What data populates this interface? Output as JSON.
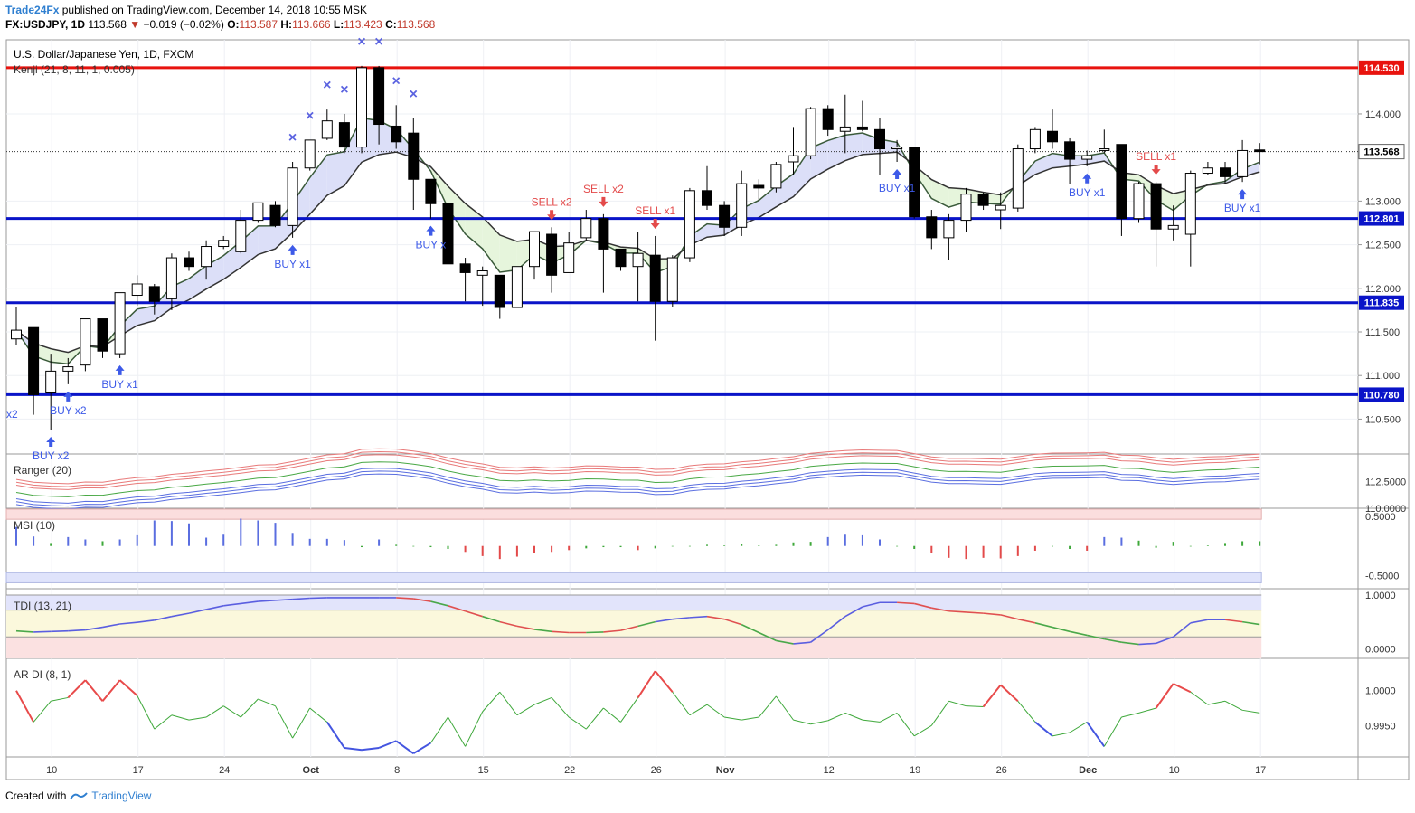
{
  "header": {
    "author": "Trade24Fx",
    "published_text": "published on TradingView.com, December 14, 2018 10:55 MSK",
    "symbol": "FX:USDJPY, 1D",
    "last": "113.568",
    "change": "−0.019 (−0.02%)",
    "open_label": "O:",
    "open": "113.587",
    "high_label": "H:",
    "high": "113.666",
    "low_label": "L:",
    "low": "113.423",
    "close_label": "C:",
    "close": "113.568"
  },
  "legend": {
    "title": "U.S. Dollar/Japanese Yen, 1D, FXCM",
    "kenji": "Kenji (21, 8, 11, 1, 0.005)"
  },
  "footer": {
    "created_with": "Created with",
    "brand": "TradingView"
  },
  "colors": {
    "bull": "#ffffff",
    "bear": "#000000",
    "wick": "#000000",
    "resistance": "#e8130e",
    "support": "#0a14c8",
    "buy": "#3d5ae8",
    "sell": "#e34a4a",
    "cross": "#5b63e0",
    "cloud_up": "#dcdff8",
    "cloud_down": "#e6f5dc",
    "ranger_red": "#e87a7a",
    "ranger_blue": "#5a6ee0",
    "ranger_green": "#49a845",
    "tdi_line": "#5a5ee0",
    "tdi_up": "#e05050",
    "tdi_green": "#4aa84a",
    "ardi_green": "#3ea83a",
    "ardi_red": "#e84a4a",
    "ardi_blue": "#4455e0"
  },
  "chart_data": [
    {
      "type": "candlestick",
      "name": "main",
      "title": "U.S. Dollar/Japanese Yen, 1D, FXCM",
      "ylim": [
        110.1,
        114.85
      ],
      "y_ticks": [
        "110.500",
        "111.000",
        "111.500",
        "112.000",
        "112.500",
        "113.000",
        "114.000"
      ],
      "x_ticks": [
        "10",
        "17",
        "24",
        "Oct",
        "8",
        "15",
        "22",
        "26",
        "Nov",
        "12",
        "19",
        "26",
        "Dec",
        "10",
        "17"
      ],
      "levels": [
        {
          "value": 114.53,
          "label": "114.530",
          "kind": "resistance"
        },
        {
          "value": 112.801,
          "label": "112.801",
          "kind": "support"
        },
        {
          "value": 111.835,
          "label": "111.835",
          "kind": "support"
        },
        {
          "value": 110.78,
          "label": "110.780",
          "kind": "support"
        }
      ],
      "last_price": {
        "value": 113.568,
        "label": "113.568"
      },
      "candles": [
        {
          "o": 111.42,
          "h": 111.78,
          "l": 111.35,
          "c": 111.52
        },
        {
          "o": 111.55,
          "h": 111.55,
          "l": 110.55,
          "c": 110.78
        },
        {
          "o": 110.8,
          "h": 111.25,
          "l": 110.38,
          "c": 111.05
        },
        {
          "o": 111.05,
          "h": 111.2,
          "l": 110.9,
          "c": 111.1
        },
        {
          "o": 111.12,
          "h": 111.65,
          "l": 111.05,
          "c": 111.65
        },
        {
          "o": 111.65,
          "h": 111.65,
          "l": 111.2,
          "c": 111.28
        },
        {
          "o": 111.25,
          "h": 111.95,
          "l": 111.2,
          "c": 111.95
        },
        {
          "o": 111.92,
          "h": 112.15,
          "l": 111.8,
          "c": 112.05
        },
        {
          "o": 112.02,
          "h": 112.05,
          "l": 111.7,
          "c": 111.85
        },
        {
          "o": 111.88,
          "h": 112.4,
          "l": 111.75,
          "c": 112.35
        },
        {
          "o": 112.35,
          "h": 112.42,
          "l": 112.2,
          "c": 112.25
        },
        {
          "o": 112.25,
          "h": 112.55,
          "l": 112.1,
          "c": 112.48
        },
        {
          "o": 112.48,
          "h": 112.6,
          "l": 112.45,
          "c": 112.55
        },
        {
          "o": 112.42,
          "h": 112.9,
          "l": 112.4,
          "c": 112.78
        },
        {
          "o": 112.78,
          "h": 112.98,
          "l": 112.75,
          "c": 112.98
        },
        {
          "o": 112.95,
          "h": 113.0,
          "l": 112.7,
          "c": 112.72
        },
        {
          "o": 112.72,
          "h": 113.45,
          "l": 112.58,
          "c": 113.38
        },
        {
          "o": 113.38,
          "h": 113.7,
          "l": 113.35,
          "c": 113.7
        },
        {
          "o": 113.72,
          "h": 114.05,
          "l": 113.7,
          "c": 113.92
        },
        {
          "o": 113.9,
          "h": 114.0,
          "l": 113.55,
          "c": 113.62
        },
        {
          "o": 113.62,
          "h": 114.55,
          "l": 113.55,
          "c": 114.53
        },
        {
          "o": 114.53,
          "h": 114.55,
          "l": 113.65,
          "c": 113.88
        },
        {
          "o": 113.86,
          "h": 114.1,
          "l": 113.6,
          "c": 113.68
        },
        {
          "o": 113.78,
          "h": 113.95,
          "l": 112.9,
          "c": 113.25
        },
        {
          "o": 113.25,
          "h": 113.25,
          "l": 112.8,
          "c": 112.97
        },
        {
          "o": 112.97,
          "h": 112.97,
          "l": 112.25,
          "c": 112.28
        },
        {
          "o": 112.28,
          "h": 112.35,
          "l": 111.85,
          "c": 112.18
        },
        {
          "o": 112.15,
          "h": 112.25,
          "l": 111.8,
          "c": 112.2
        },
        {
          "o": 112.15,
          "h": 112.15,
          "l": 111.65,
          "c": 111.78
        },
        {
          "o": 111.78,
          "h": 112.25,
          "l": 111.78,
          "c": 112.25
        },
        {
          "o": 112.25,
          "h": 112.65,
          "l": 112.1,
          "c": 112.65
        },
        {
          "o": 112.62,
          "h": 112.7,
          "l": 111.95,
          "c": 112.15
        },
        {
          "o": 112.18,
          "h": 112.65,
          "l": 112.18,
          "c": 112.52
        },
        {
          "o": 112.58,
          "h": 112.9,
          "l": 112.55,
          "c": 112.8
        },
        {
          "o": 112.8,
          "h": 112.85,
          "l": 111.95,
          "c": 112.45
        },
        {
          "o": 112.45,
          "h": 112.45,
          "l": 112.2,
          "c": 112.25
        },
        {
          "o": 112.25,
          "h": 112.65,
          "l": 111.85,
          "c": 112.4
        },
        {
          "o": 112.38,
          "h": 112.6,
          "l": 111.4,
          "c": 111.85
        },
        {
          "o": 111.85,
          "h": 112.38,
          "l": 111.78,
          "c": 112.35
        },
        {
          "o": 112.35,
          "h": 113.15,
          "l": 112.3,
          "c": 113.12
        },
        {
          "o": 113.12,
          "h": 113.4,
          "l": 112.9,
          "c": 112.95
        },
        {
          "o": 112.95,
          "h": 113.0,
          "l": 112.6,
          "c": 112.7
        },
        {
          "o": 112.7,
          "h": 113.35,
          "l": 112.6,
          "c": 113.2
        },
        {
          "o": 113.18,
          "h": 113.25,
          "l": 113.0,
          "c": 113.15
        },
        {
          "o": 113.15,
          "h": 113.45,
          "l": 113.1,
          "c": 113.42
        },
        {
          "o": 113.45,
          "h": 113.85,
          "l": 113.3,
          "c": 113.52
        },
        {
          "o": 113.52,
          "h": 114.08,
          "l": 113.48,
          "c": 114.06
        },
        {
          "o": 114.06,
          "h": 114.1,
          "l": 113.75,
          "c": 113.82
        },
        {
          "o": 113.8,
          "h": 114.22,
          "l": 113.55,
          "c": 113.85
        },
        {
          "o": 113.85,
          "h": 114.15,
          "l": 113.8,
          "c": 113.82
        },
        {
          "o": 113.82,
          "h": 113.95,
          "l": 113.3,
          "c": 113.6
        },
        {
          "o": 113.6,
          "h": 113.7,
          "l": 113.45,
          "c": 113.62
        },
        {
          "o": 113.62,
          "h": 113.62,
          "l": 112.8,
          "c": 112.82
        },
        {
          "o": 112.82,
          "h": 112.9,
          "l": 112.45,
          "c": 112.58
        },
        {
          "o": 112.58,
          "h": 112.85,
          "l": 112.32,
          "c": 112.78
        },
        {
          "o": 112.78,
          "h": 113.15,
          "l": 112.65,
          "c": 113.08
        },
        {
          "o": 113.08,
          "h": 113.1,
          "l": 112.9,
          "c": 112.95
        },
        {
          "o": 112.9,
          "h": 113.1,
          "l": 112.68,
          "c": 112.95
        },
        {
          "o": 112.92,
          "h": 113.65,
          "l": 112.88,
          "c": 113.6
        },
        {
          "o": 113.6,
          "h": 113.85,
          "l": 113.55,
          "c": 113.82
        },
        {
          "o": 113.8,
          "h": 114.05,
          "l": 113.6,
          "c": 113.68
        },
        {
          "o": 113.68,
          "h": 113.72,
          "l": 113.2,
          "c": 113.48
        },
        {
          "o": 113.48,
          "h": 113.58,
          "l": 113.4,
          "c": 113.52
        },
        {
          "o": 113.58,
          "h": 113.82,
          "l": 113.55,
          "c": 113.6
        },
        {
          "o": 113.65,
          "h": 113.65,
          "l": 112.6,
          "c": 112.8
        },
        {
          "o": 112.8,
          "h": 113.22,
          "l": 112.75,
          "c": 113.2
        },
        {
          "o": 113.2,
          "h": 113.22,
          "l": 112.25,
          "c": 112.68
        },
        {
          "o": 112.68,
          "h": 112.95,
          "l": 112.55,
          "c": 112.72
        },
        {
          "o": 112.62,
          "h": 113.35,
          "l": 112.25,
          "c": 113.32
        },
        {
          "o": 113.32,
          "h": 113.45,
          "l": 113.3,
          "c": 113.38
        },
        {
          "o": 113.38,
          "h": 113.45,
          "l": 113.2,
          "c": 113.28
        },
        {
          "o": 113.28,
          "h": 113.7,
          "l": 113.22,
          "c": 113.58
        },
        {
          "o": 113.587,
          "h": 113.666,
          "l": 113.423,
          "c": 113.568
        }
      ],
      "signals": [
        {
          "i": 2,
          "label": "BUY x2",
          "side": "buy"
        },
        {
          "i": 3,
          "label": "BUY x2",
          "side": "buy"
        },
        {
          "i": 6,
          "label": "BUY x1",
          "side": "buy"
        },
        {
          "i": 16,
          "label": "BUY x1",
          "side": "buy"
        },
        {
          "i": 24,
          "label": "BUY x",
          "side": "buy"
        },
        {
          "i": 31,
          "label": "SELL x2",
          "side": "sell"
        },
        {
          "i": 34,
          "label": "SELL x2",
          "side": "sell"
        },
        {
          "i": 37,
          "label": "SELL x1",
          "side": "sell"
        },
        {
          "i": 51,
          "label": "BUY x1",
          "side": "buy"
        },
        {
          "i": 62,
          "label": "BUY x1",
          "side": "buy"
        },
        {
          "i": 66,
          "label": "SELL x1",
          "side": "sell"
        },
        {
          "i": 71,
          "label": "BUY x1",
          "side": "buy"
        }
      ],
      "cut_label": "x2",
      "cross_marks": [
        16,
        17,
        18,
        19,
        20,
        21,
        22,
        23
      ]
    },
    {
      "type": "bands",
      "name": "Ranger (20)",
      "ylim": [
        111.95,
        113.05
      ],
      "tick": "112.5000",
      "tick_bottom": "110.0000"
    },
    {
      "type": "histogram",
      "name": "MSI (10)",
      "ylim": [
        -0.72,
        0.62
      ],
      "ticks": [
        "0.5000",
        "-0.5000"
      ],
      "values": [
        0.32,
        0.16,
        0.05,
        0.15,
        0.11,
        0.08,
        0.11,
        0.18,
        0.43,
        0.42,
        0.38,
        0.14,
        0.19,
        0.46,
        0.43,
        0.39,
        0.22,
        0.12,
        0.12,
        0.1,
        -0.02,
        0.11,
        0.02,
        -0.01,
        -0.02,
        -0.05,
        -0.1,
        -0.17,
        -0.22,
        -0.18,
        -0.12,
        -0.1,
        -0.07,
        -0.04,
        -0.02,
        -0.02,
        -0.07,
        -0.04,
        -0.01,
        -0.01,
        0.02,
        0.01,
        0.03,
        0.01,
        0.02,
        0.06,
        0.07,
        0.15,
        0.19,
        0.18,
        0.11,
        -0.01,
        -0.05,
        -0.12,
        -0.2,
        -0.22,
        -0.2,
        -0.21,
        -0.17,
        -0.08,
        -0.01,
        -0.05,
        -0.08,
        0.15,
        0.14,
        0.09,
        -0.03,
        0.07,
        -0.01,
        0.01,
        0.05,
        0.08,
        0.08
      ]
    },
    {
      "type": "line",
      "name": "TDI (13, 21)",
      "ylim": [
        -0.18,
        1.1
      ],
      "ticks": [
        "1.0000",
        "0.0000"
      ],
      "values": [
        0.33,
        0.31,
        0.32,
        0.33,
        0.35,
        0.4,
        0.46,
        0.49,
        0.53,
        0.6,
        0.66,
        0.73,
        0.8,
        0.84,
        0.88,
        0.9,
        0.92,
        0.94,
        0.95,
        0.95,
        0.95,
        0.95,
        0.95,
        0.93,
        0.88,
        0.8,
        0.7,
        0.6,
        0.5,
        0.42,
        0.36,
        0.32,
        0.3,
        0.3,
        0.31,
        0.34,
        0.42,
        0.5,
        0.55,
        0.58,
        0.6,
        0.55,
        0.45,
        0.3,
        0.15,
        0.09,
        0.12,
        0.35,
        0.6,
        0.78,
        0.86,
        0.86,
        0.84,
        0.76,
        0.7,
        0.68,
        0.66,
        0.63,
        0.55,
        0.48,
        0.4,
        0.32,
        0.25,
        0.18,
        0.12,
        0.08,
        0.1,
        0.22,
        0.48,
        0.54,
        0.54,
        0.5,
        0.45,
        0.4
      ]
    },
    {
      "type": "line",
      "name": "AR DI (8, 1)",
      "ylim": [
        0.9905,
        1.0045
      ],
      "ticks": [
        "1.0000",
        "0.9950"
      ],
      "values": [
        1.0,
        0.9955,
        0.9985,
        0.999,
        1.0015,
        0.9985,
        1.0015,
        0.9993,
        0.9945,
        0.9965,
        0.9958,
        0.9962,
        0.9978,
        0.9962,
        0.9988,
        0.9978,
        0.9932,
        0.9975,
        0.9955,
        0.9918,
        0.9915,
        0.9918,
        0.9928,
        0.991,
        0.9925,
        0.9962,
        0.992,
        0.997,
        0.9998,
        0.9965,
        0.998,
        0.999,
        0.9962,
        0.9945,
        0.9975,
        0.9955,
        0.999,
        1.0028,
        0.9998,
        0.9965,
        0.998,
        0.9962,
        0.9958,
        0.9962,
        0.9992,
        0.9958,
        0.9952,
        0.9957,
        0.9968,
        0.9958,
        0.9955,
        0.9968,
        0.9935,
        0.995,
        0.9985,
        0.9978,
        0.9977,
        1.0008,
        0.9985,
        0.9955,
        0.9935,
        0.994,
        0.9955,
        0.992,
        0.9962,
        0.9968,
        0.9975,
        1.001,
        0.9998,
        0.998,
        0.9985,
        0.9972,
        0.9968
      ]
    }
  ]
}
